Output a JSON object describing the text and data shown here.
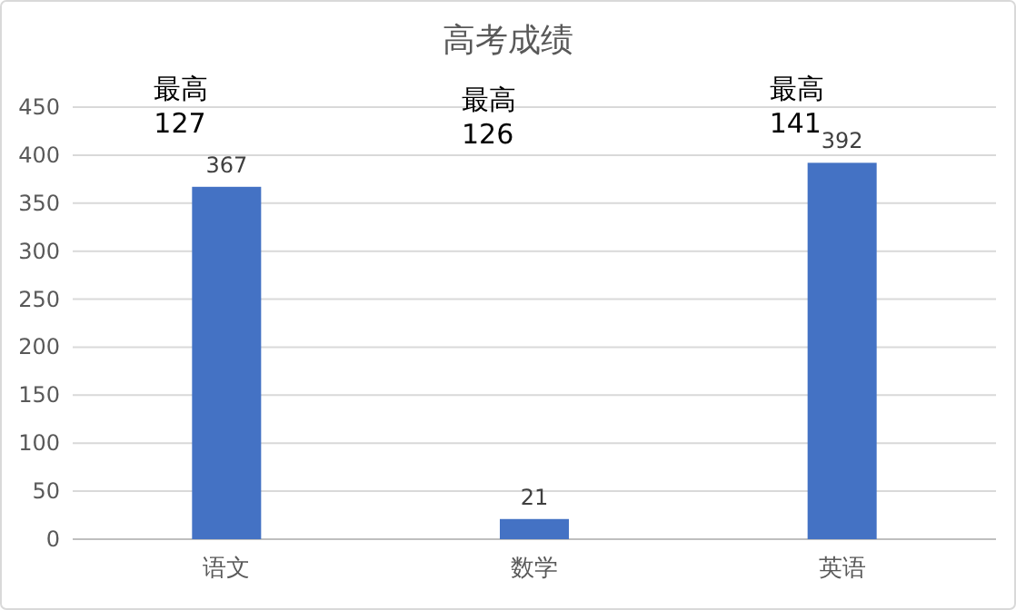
{
  "chart_data": {
    "type": "bar",
    "title": "高考成绩",
    "categories": [
      "语文",
      "数学",
      "英语"
    ],
    "values": [
      367,
      21,
      392
    ],
    "color": "#4472c4",
    "ylim": [
      0,
      450
    ],
    "yticks": [
      0,
      50,
      100,
      150,
      200,
      250,
      300,
      350,
      400,
      450
    ],
    "grid": "y",
    "data_labels": true,
    "annotations": [
      "最高\n127",
      "最高\n126",
      "最高\n141"
    ]
  }
}
